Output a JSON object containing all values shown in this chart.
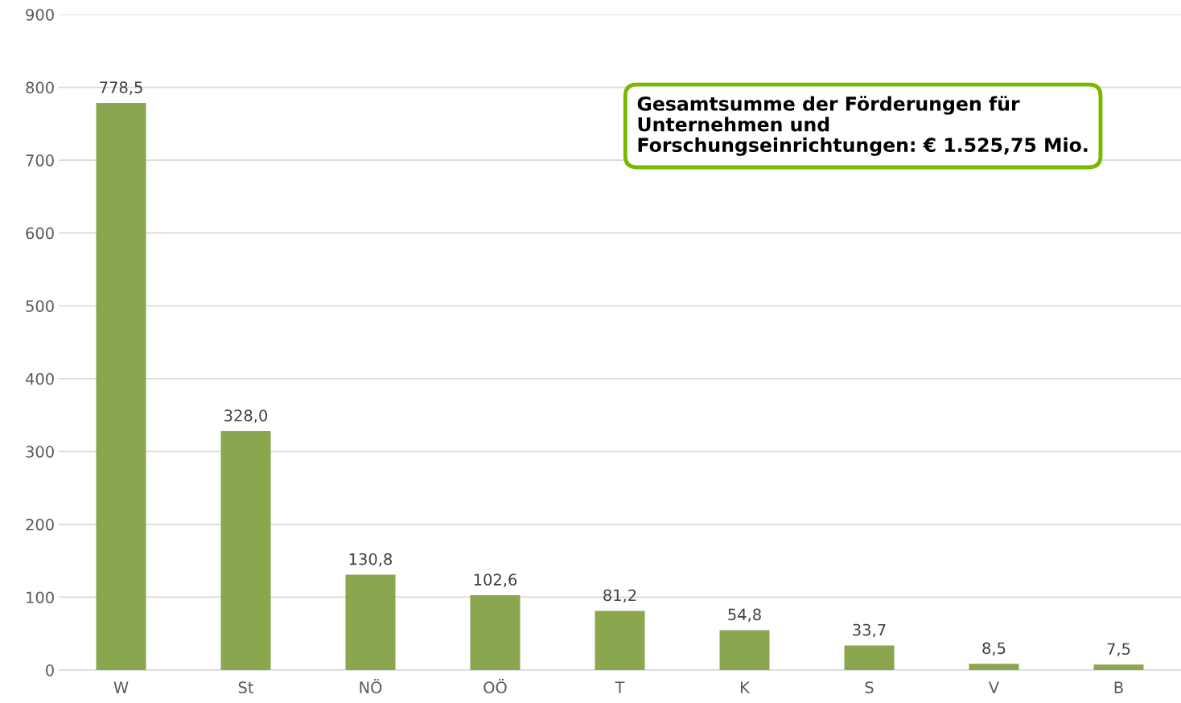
{
  "chart_data": {
    "type": "bar",
    "categories": [
      "W",
      "St",
      "NÖ",
      "OÖ",
      "T",
      "K",
      "S",
      "V",
      "B"
    ],
    "values": [
      778.5,
      328.0,
      130.8,
      102.6,
      81.2,
      54.8,
      33.7,
      8.5,
      7.5
    ],
    "value_labels": [
      "778,5",
      "328,0",
      "130,8",
      "102,6",
      "81,2",
      "54,8",
      "33,7",
      "8,5",
      "7,5"
    ],
    "color": "#8aa64e",
    "ylim": [
      0,
      900
    ],
    "yticks": [
      0,
      100,
      200,
      300,
      400,
      500,
      600,
      700,
      800,
      900
    ],
    "grid": "y",
    "annotations": [
      "Gesamtsumme der Förderungen für\nUnternehmen und\nForschungseinrichtungen: € 1.525,75 Mio."
    ]
  }
}
